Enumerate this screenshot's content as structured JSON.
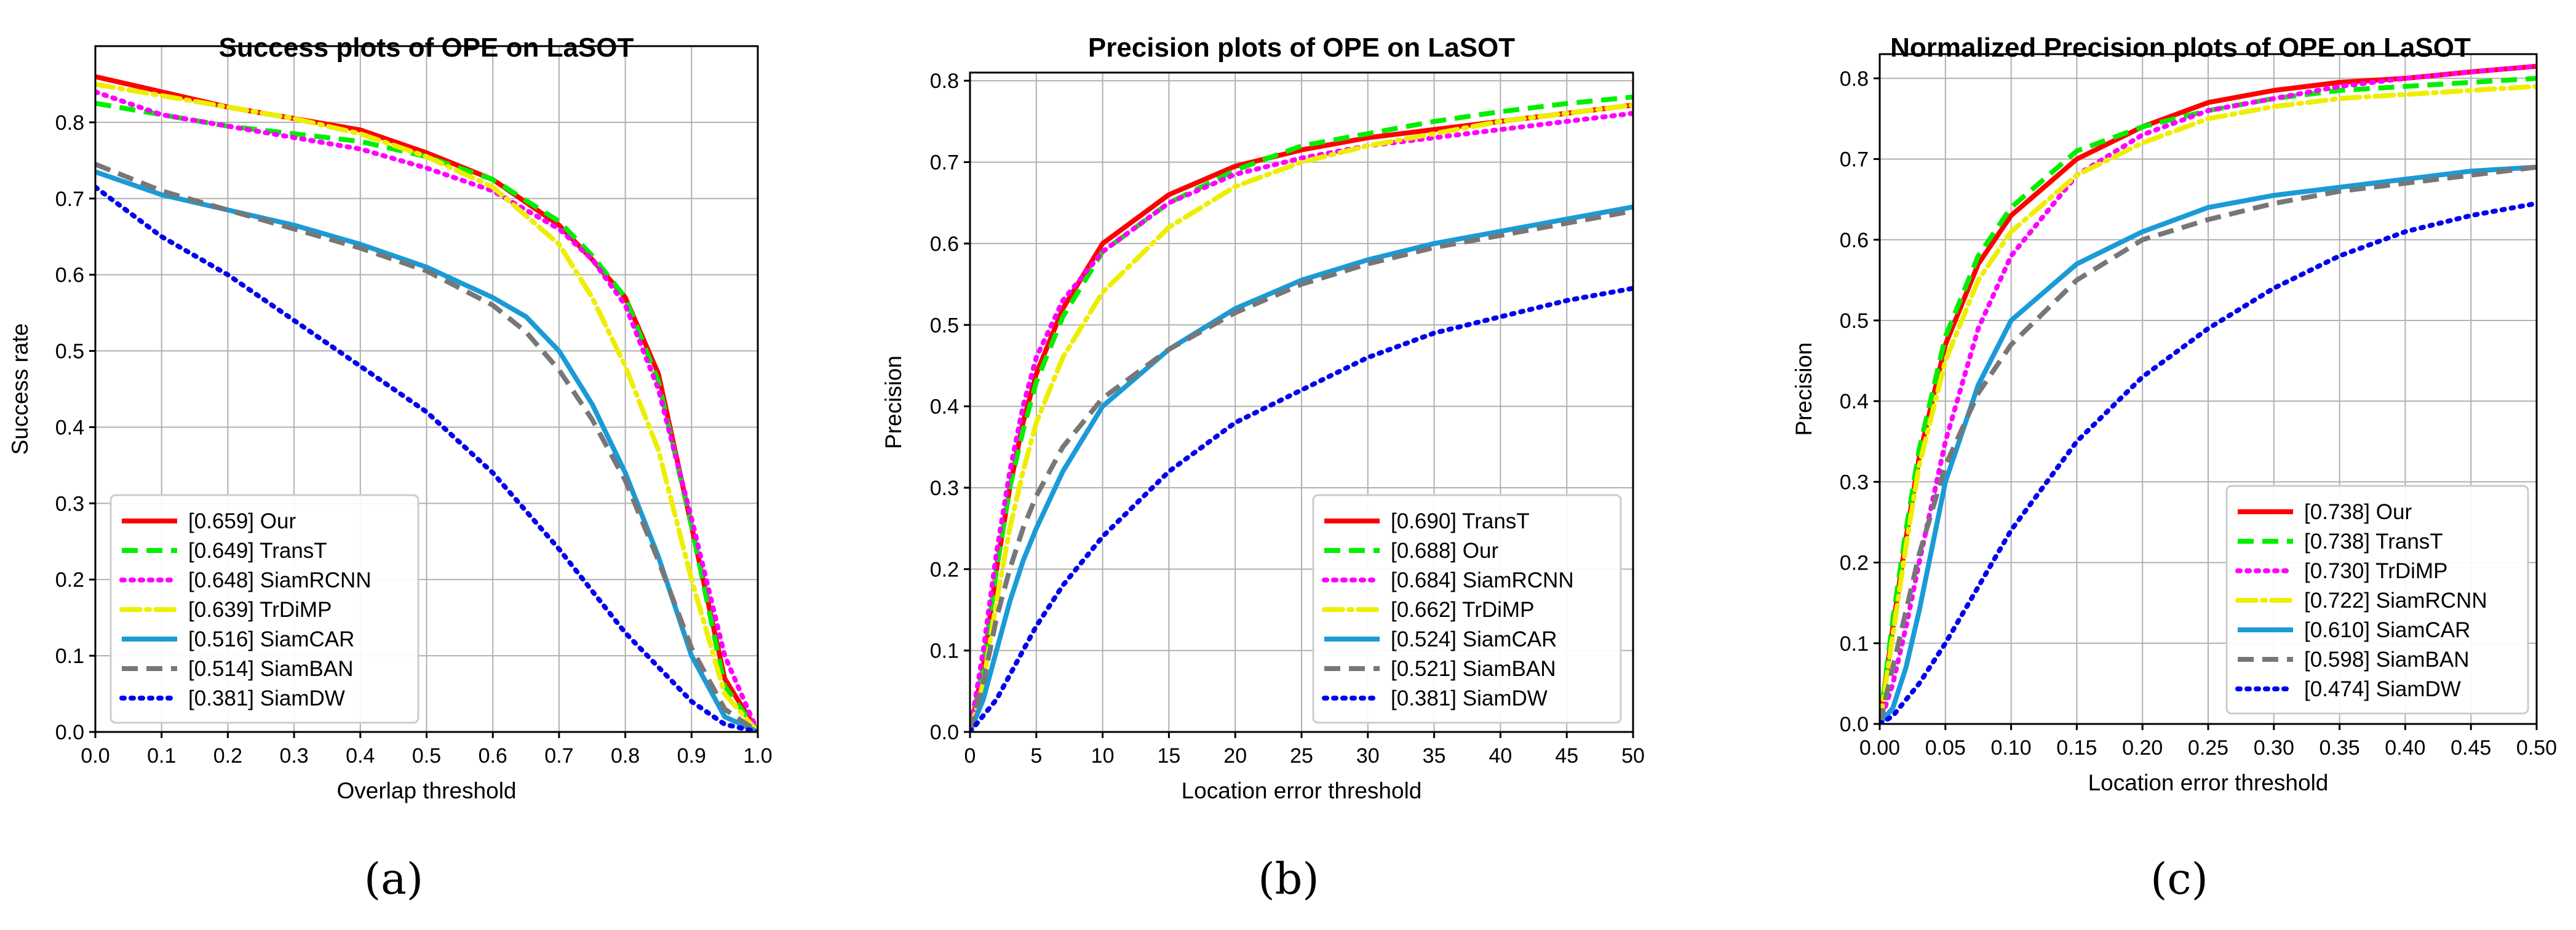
{
  "chart_data": [
    {
      "id": "a",
      "type": "line",
      "title": "Success plots of OPE on LaSOT",
      "xlabel": "Overlap threshold",
      "ylabel": "Success rate",
      "caption": "(a)",
      "xlim": [
        0,
        1
      ],
      "ylim": [
        0,
        0.9
      ],
      "xticks": [
        0,
        0.1,
        0.2,
        0.3,
        0.4,
        0.5,
        0.6,
        0.7,
        0.8,
        0.9,
        1.0
      ],
      "xtick_labels": [
        "0.0",
        "0.1",
        "0.2",
        "0.3",
        "0.4",
        "0.5",
        "0.6",
        "0.7",
        "0.8",
        "0.9",
        "1.0"
      ],
      "yticks": [
        0,
        0.1,
        0.2,
        0.3,
        0.4,
        0.5,
        0.6,
        0.7,
        0.8
      ],
      "ytick_labels": [
        "0.0",
        "0.1",
        "0.2",
        "0.3",
        "0.4",
        "0.5",
        "0.6",
        "0.7",
        "0.8"
      ],
      "grid": true,
      "legend_position": "lower-left",
      "series": [
        {
          "name": "[0.659] Our",
          "color": "#ff0000",
          "style": "solid",
          "x": [
            0,
            0.1,
            0.2,
            0.3,
            0.4,
            0.5,
            0.6,
            0.7,
            0.75,
            0.8,
            0.85,
            0.9,
            0.95,
            1.0
          ],
          "y": [
            0.86,
            0.84,
            0.82,
            0.805,
            0.79,
            0.76,
            0.725,
            0.665,
            0.62,
            0.57,
            0.47,
            0.27,
            0.07,
            0.0
          ]
        },
        {
          "name": "[0.649] TransT",
          "color": "#00ee00",
          "style": "dashed",
          "x": [
            0,
            0.1,
            0.2,
            0.3,
            0.4,
            0.5,
            0.6,
            0.7,
            0.75,
            0.8,
            0.85,
            0.9,
            0.95,
            1.0
          ],
          "y": [
            0.825,
            0.81,
            0.795,
            0.785,
            0.775,
            0.755,
            0.725,
            0.67,
            0.625,
            0.57,
            0.46,
            0.27,
            0.06,
            0.0
          ]
        },
        {
          "name": "[0.648] SiamRCNN",
          "color": "#ff00ff",
          "style": "dotted",
          "x": [
            0,
            0.1,
            0.2,
            0.3,
            0.4,
            0.5,
            0.6,
            0.7,
            0.75,
            0.8,
            0.85,
            0.9,
            0.95,
            1.0
          ],
          "y": [
            0.84,
            0.81,
            0.795,
            0.78,
            0.765,
            0.74,
            0.71,
            0.66,
            0.62,
            0.56,
            0.45,
            0.28,
            0.1,
            0.0
          ]
        },
        {
          "name": "[0.639] TrDiMP",
          "color": "#eeee00",
          "style": "dashdot",
          "x": [
            0,
            0.1,
            0.2,
            0.3,
            0.4,
            0.5,
            0.6,
            0.7,
            0.75,
            0.8,
            0.85,
            0.9,
            0.95,
            1.0
          ],
          "y": [
            0.85,
            0.835,
            0.82,
            0.805,
            0.785,
            0.755,
            0.715,
            0.64,
            0.57,
            0.48,
            0.37,
            0.2,
            0.05,
            0.0
          ]
        },
        {
          "name": "[0.516] SiamCAR",
          "color": "#1a9bd7",
          "style": "solid",
          "x": [
            0,
            0.1,
            0.2,
            0.3,
            0.4,
            0.5,
            0.6,
            0.65,
            0.7,
            0.75,
            0.8,
            0.85,
            0.9,
            0.95,
            1.0
          ],
          "y": [
            0.735,
            0.705,
            0.685,
            0.665,
            0.64,
            0.61,
            0.57,
            0.545,
            0.5,
            0.43,
            0.34,
            0.23,
            0.1,
            0.02,
            0.0
          ]
        },
        {
          "name": "[0.514] SiamBAN",
          "color": "#777777",
          "style": "dashed",
          "x": [
            0,
            0.1,
            0.2,
            0.3,
            0.4,
            0.5,
            0.6,
            0.65,
            0.7,
            0.75,
            0.8,
            0.85,
            0.9,
            0.95,
            1.0
          ],
          "y": [
            0.745,
            0.71,
            0.685,
            0.66,
            0.635,
            0.605,
            0.56,
            0.525,
            0.475,
            0.41,
            0.33,
            0.225,
            0.11,
            0.03,
            0.0
          ]
        },
        {
          "name": "[0.381] SiamDW",
          "color": "#0000ee",
          "style": "dotted",
          "x": [
            0,
            0.1,
            0.2,
            0.3,
            0.4,
            0.5,
            0.6,
            0.7,
            0.8,
            0.9,
            0.95,
            1.0
          ],
          "y": [
            0.715,
            0.65,
            0.6,
            0.54,
            0.48,
            0.42,
            0.34,
            0.24,
            0.13,
            0.04,
            0.01,
            0.0
          ]
        }
      ]
    },
    {
      "id": "b",
      "type": "line",
      "title": "Precision plots of OPE on LaSOT",
      "xlabel": "Location error threshold",
      "ylabel": "Precision",
      "caption": "(b)",
      "xlim": [
        0,
        50
      ],
      "ylim": [
        0,
        0.81
      ],
      "xticks": [
        0,
        5,
        10,
        15,
        20,
        25,
        30,
        35,
        40,
        45,
        50
      ],
      "xtick_labels": [
        "0",
        "5",
        "10",
        "15",
        "20",
        "25",
        "30",
        "35",
        "40",
        "45",
        "50"
      ],
      "yticks": [
        0,
        0.1,
        0.2,
        0.3,
        0.4,
        0.5,
        0.6,
        0.7,
        0.8
      ],
      "ytick_labels": [
        "0.0",
        "0.1",
        "0.2",
        "0.3",
        "0.4",
        "0.5",
        "0.6",
        "0.7",
        "0.8"
      ],
      "grid": true,
      "legend_position": "lower-right",
      "series": [
        {
          "name": "[0.690] TransT",
          "color": "#ff0000",
          "style": "solid",
          "x": [
            0,
            1,
            2,
            3,
            4,
            5,
            7,
            10,
            15,
            20,
            25,
            30,
            35,
            40,
            45,
            50
          ],
          "y": [
            0,
            0.08,
            0.2,
            0.3,
            0.38,
            0.44,
            0.52,
            0.6,
            0.66,
            0.695,
            0.715,
            0.73,
            0.74,
            0.75,
            0.76,
            0.77
          ]
        },
        {
          "name": "[0.688] Our",
          "color": "#00ee00",
          "style": "dashed",
          "x": [
            0,
            1,
            2,
            3,
            4,
            5,
            7,
            10,
            15,
            20,
            25,
            30,
            35,
            40,
            45,
            50
          ],
          "y": [
            0,
            0.08,
            0.2,
            0.3,
            0.37,
            0.43,
            0.51,
            0.59,
            0.65,
            0.69,
            0.72,
            0.735,
            0.75,
            0.762,
            0.772,
            0.78
          ]
        },
        {
          "name": "[0.684] SiamRCNN",
          "color": "#ff00ff",
          "style": "dotted",
          "x": [
            0,
            1,
            2,
            3,
            4,
            5,
            7,
            10,
            15,
            20,
            25,
            30,
            35,
            40,
            45,
            50
          ],
          "y": [
            0,
            0.1,
            0.22,
            0.32,
            0.4,
            0.46,
            0.53,
            0.59,
            0.65,
            0.685,
            0.705,
            0.72,
            0.73,
            0.74,
            0.75,
            0.76
          ]
        },
        {
          "name": "[0.662] TrDiMP",
          "color": "#eeee00",
          "style": "dashdot",
          "x": [
            0,
            1,
            2,
            3,
            4,
            5,
            7,
            10,
            15,
            20,
            25,
            30,
            35,
            40,
            45,
            50
          ],
          "y": [
            0,
            0.06,
            0.16,
            0.25,
            0.32,
            0.38,
            0.46,
            0.54,
            0.62,
            0.67,
            0.7,
            0.72,
            0.735,
            0.75,
            0.76,
            0.77
          ]
        },
        {
          "name": "[0.524] SiamCAR",
          "color": "#1a9bd7",
          "style": "solid",
          "x": [
            0,
            1,
            2,
            3,
            4,
            5,
            7,
            10,
            15,
            20,
            25,
            30,
            35,
            40,
            45,
            50
          ],
          "y": [
            0,
            0.04,
            0.1,
            0.16,
            0.21,
            0.25,
            0.32,
            0.4,
            0.47,
            0.52,
            0.555,
            0.58,
            0.6,
            0.615,
            0.63,
            0.645
          ]
        },
        {
          "name": "[0.521] SiamBAN",
          "color": "#777777",
          "style": "dashed",
          "x": [
            0,
            1,
            2,
            3,
            4,
            5,
            7,
            10,
            15,
            20,
            25,
            30,
            35,
            40,
            45,
            50
          ],
          "y": [
            0,
            0.06,
            0.14,
            0.2,
            0.25,
            0.29,
            0.35,
            0.41,
            0.47,
            0.515,
            0.55,
            0.575,
            0.595,
            0.61,
            0.625,
            0.64
          ]
        },
        {
          "name": "[0.381] SiamDW",
          "color": "#0000ee",
          "style": "dotted",
          "x": [
            0,
            1,
            2,
            3,
            4,
            5,
            7,
            10,
            15,
            20,
            25,
            30,
            35,
            40,
            45,
            50
          ],
          "y": [
            0,
            0.02,
            0.04,
            0.07,
            0.1,
            0.13,
            0.18,
            0.24,
            0.32,
            0.38,
            0.42,
            0.46,
            0.49,
            0.51,
            0.53,
            0.545
          ]
        }
      ]
    },
    {
      "id": "c",
      "type": "line",
      "title": "Normalized Precision plots of OPE on LaSOT",
      "xlabel": "Location error threshold",
      "ylabel": "Precision",
      "caption": "(c)",
      "xlim": [
        0,
        0.5
      ],
      "ylim": [
        0,
        0.83
      ],
      "xticks": [
        0,
        0.05,
        0.1,
        0.15,
        0.2,
        0.25,
        0.3,
        0.35,
        0.4,
        0.45,
        0.5
      ],
      "xtick_labels": [
        "0.00",
        "0.05",
        "0.10",
        "0.15",
        "0.20",
        "0.25",
        "0.30",
        "0.35",
        "0.40",
        "0.45",
        "0.50"
      ],
      "yticks": [
        0,
        0.1,
        0.2,
        0.3,
        0.4,
        0.5,
        0.6,
        0.7,
        0.8
      ],
      "ytick_labels": [
        "0.0",
        "0.1",
        "0.2",
        "0.3",
        "0.4",
        "0.5",
        "0.6",
        "0.7",
        "0.8"
      ],
      "grid": true,
      "legend_position": "lower-right",
      "series": [
        {
          "name": "[0.738] Our",
          "color": "#ff0000",
          "style": "solid",
          "x": [
            0,
            0.01,
            0.02,
            0.03,
            0.05,
            0.075,
            0.1,
            0.15,
            0.2,
            0.25,
            0.3,
            0.35,
            0.4,
            0.45,
            0.5
          ],
          "y": [
            0,
            0.12,
            0.23,
            0.33,
            0.47,
            0.57,
            0.63,
            0.7,
            0.74,
            0.77,
            0.785,
            0.795,
            0.8,
            0.808,
            0.815
          ]
        },
        {
          "name": "[0.738] TransT",
          "color": "#00ee00",
          "style": "dashed",
          "x": [
            0,
            0.01,
            0.02,
            0.03,
            0.05,
            0.075,
            0.1,
            0.15,
            0.2,
            0.25,
            0.3,
            0.35,
            0.4,
            0.45,
            0.5
          ],
          "y": [
            0,
            0.13,
            0.24,
            0.34,
            0.48,
            0.58,
            0.64,
            0.71,
            0.74,
            0.76,
            0.775,
            0.785,
            0.79,
            0.795,
            0.8
          ]
        },
        {
          "name": "[0.730] TrDiMP",
          "color": "#ff00ff",
          "style": "dotted",
          "x": [
            0,
            0.01,
            0.02,
            0.03,
            0.05,
            0.075,
            0.1,
            0.15,
            0.2,
            0.25,
            0.3,
            0.35,
            0.4,
            0.45,
            0.5
          ],
          "y": [
            0,
            0.05,
            0.12,
            0.2,
            0.35,
            0.49,
            0.58,
            0.68,
            0.73,
            0.76,
            0.775,
            0.79,
            0.8,
            0.808,
            0.815
          ]
        },
        {
          "name": "[0.722] SiamRCNN",
          "color": "#eeee00",
          "style": "dashdot",
          "x": [
            0,
            0.01,
            0.02,
            0.03,
            0.05,
            0.075,
            0.1,
            0.15,
            0.2,
            0.25,
            0.3,
            0.35,
            0.4,
            0.45,
            0.5
          ],
          "y": [
            0,
            0.11,
            0.22,
            0.32,
            0.45,
            0.55,
            0.61,
            0.68,
            0.72,
            0.75,
            0.765,
            0.775,
            0.78,
            0.785,
            0.79
          ]
        },
        {
          "name": "[0.610] SiamCAR",
          "color": "#1a9bd7",
          "style": "solid",
          "x": [
            0,
            0.01,
            0.02,
            0.03,
            0.05,
            0.075,
            0.1,
            0.15,
            0.2,
            0.25,
            0.3,
            0.35,
            0.4,
            0.45,
            0.5
          ],
          "y": [
            0,
            0.02,
            0.07,
            0.14,
            0.3,
            0.42,
            0.5,
            0.57,
            0.61,
            0.64,
            0.655,
            0.665,
            0.675,
            0.685,
            0.69
          ]
        },
        {
          "name": "[0.598] SiamBAN",
          "color": "#777777",
          "style": "dashed",
          "x": [
            0,
            0.01,
            0.02,
            0.03,
            0.05,
            0.075,
            0.1,
            0.15,
            0.2,
            0.25,
            0.3,
            0.35,
            0.4,
            0.45,
            0.5
          ],
          "y": [
            0,
            0.07,
            0.14,
            0.21,
            0.32,
            0.41,
            0.47,
            0.55,
            0.6,
            0.625,
            0.645,
            0.66,
            0.67,
            0.68,
            0.69
          ]
        },
        {
          "name": "[0.474] SiamDW",
          "color": "#0000ee",
          "style": "dotted",
          "x": [
            0,
            0.01,
            0.02,
            0.03,
            0.05,
            0.075,
            0.1,
            0.15,
            0.2,
            0.25,
            0.3,
            0.35,
            0.4,
            0.45,
            0.5
          ],
          "y": [
            0,
            0.01,
            0.03,
            0.05,
            0.1,
            0.17,
            0.24,
            0.35,
            0.43,
            0.49,
            0.54,
            0.58,
            0.61,
            0.63,
            0.645
          ]
        }
      ]
    }
  ]
}
